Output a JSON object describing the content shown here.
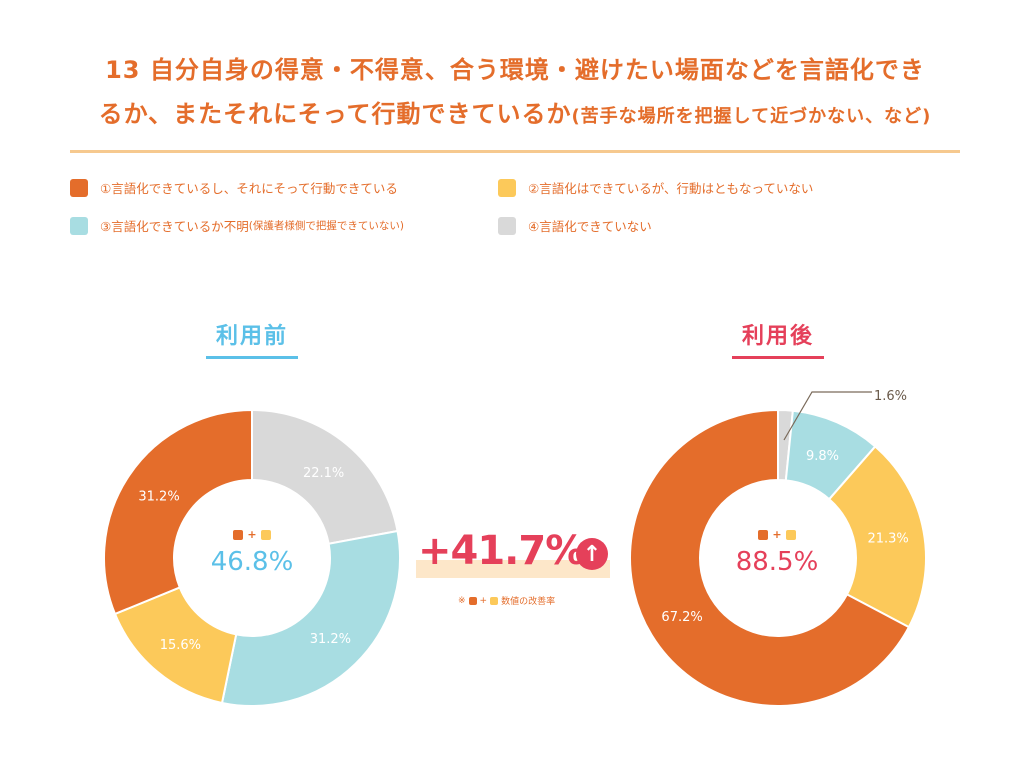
{
  "header": {
    "title_line1": "13 自分自身の得意・不得意、合う環境・避けたい場面などを言語化でき",
    "title_line2": "るか、またそれにそって行動できているか",
    "title_note": "(苦手な場所を把握して近づかない、など)"
  },
  "legend": [
    {
      "label": "①言語化できているし、それにそって行動できている",
      "color": "#e46d2b"
    },
    {
      "label": "②言語化はできているが、行動はともなっていない",
      "color": "#fcc95a"
    },
    {
      "label": "③言語化できているか不明",
      "sub": "(保護者様側で把握できていない)",
      "color": "#a8dde2"
    },
    {
      "label": "④言語化できていない",
      "color": "#d9d9d9"
    }
  ],
  "chart_data": [
    {
      "type": "pie",
      "title": "利用前",
      "title_color": "#5bc0e8",
      "categories": [
        "①",
        "②",
        "③",
        "④"
      ],
      "values": [
        31.2,
        15.6,
        31.2,
        22.1
      ],
      "value_labels": [
        "31.2%",
        "15.6%",
        "31.2%",
        "22.1%"
      ],
      "colors": [
        "#e46d2b",
        "#fcc95a",
        "#a8dde2",
        "#d9d9d9"
      ],
      "center_value": "46.8%",
      "center_color": "#5bc0e8"
    },
    {
      "type": "pie",
      "title": "利用後",
      "title_color": "#e5405a",
      "categories": [
        "①",
        "②",
        "③",
        "④"
      ],
      "values": [
        67.2,
        21.3,
        9.8,
        1.6
      ],
      "value_labels": [
        "67.2%",
        "21.3%",
        "9.8%",
        "1.6%"
      ],
      "colors": [
        "#e46d2b",
        "#fcc95a",
        "#a8dde2",
        "#d9d9d9"
      ],
      "center_value": "88.5%",
      "center_color": "#e5405a"
    }
  ],
  "improvement": {
    "value": "+41.7%",
    "note_prefix": "※",
    "note_plus": "+",
    "note_text": "数値の改善率",
    "color": "#e5405a"
  },
  "center_plus": "+"
}
